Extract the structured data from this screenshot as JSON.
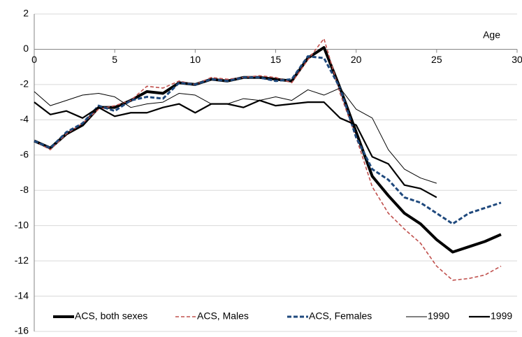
{
  "chart_data": {
    "type": "line",
    "x_label": "Age",
    "x": [
      0,
      1,
      2,
      3,
      4,
      5,
      6,
      7,
      8,
      9,
      10,
      11,
      12,
      13,
      14,
      15,
      16,
      17,
      18,
      19,
      20,
      21,
      22,
      23,
      24,
      25,
      26,
      27,
      28,
      29
    ],
    "xlim": [
      0,
      30
    ],
    "xticks": [
      0,
      5,
      10,
      15,
      20,
      25,
      30
    ],
    "ylim": [
      -16,
      2
    ],
    "yticks": [
      -16,
      -14,
      -12,
      -10,
      -8,
      -6,
      -4,
      -2,
      0,
      2
    ],
    "grid": true,
    "legend": "bottom",
    "series": [
      {
        "name": "ACS, both sexes",
        "color": "#000000",
        "values": [
          -5.2,
          -5.6,
          -4.8,
          -4.3,
          -3.3,
          -3.3,
          -2.9,
          -2.4,
          -2.5,
          -1.9,
          -2.0,
          -1.7,
          -1.8,
          -1.6,
          -1.6,
          -1.7,
          -1.8,
          -0.5,
          0.1,
          -2.2,
          -4.7,
          -7.2,
          -8.3,
          -9.3,
          -9.9,
          -10.8,
          -11.5,
          -11.2,
          -10.9,
          -10.5
        ]
      },
      {
        "name": "ACS, Males",
        "color": "#c0504d",
        "values": [
          -5.2,
          -5.7,
          -4.8,
          -4.2,
          -3.4,
          -3.2,
          -2.9,
          -2.1,
          -2.2,
          -1.8,
          -2.0,
          -1.6,
          -1.7,
          -1.6,
          -1.5,
          -1.6,
          -1.9,
          -0.6,
          0.6,
          -2.5,
          -5.0,
          -7.8,
          -9.3,
          -10.2,
          -11.0,
          -12.3,
          -13.1,
          -13.0,
          -12.8,
          -12.3
        ]
      },
      {
        "name": "ACS, Females",
        "color": "#1f497d",
        "values": [
          -5.2,
          -5.6,
          -4.7,
          -4.2,
          -3.2,
          -3.5,
          -2.9,
          -2.7,
          -2.8,
          -1.9,
          -2.0,
          -1.7,
          -1.8,
          -1.6,
          -1.6,
          -1.8,
          -1.7,
          -0.4,
          -0.5,
          -2.2,
          -5.0,
          -6.8,
          -7.4,
          -8.4,
          -8.7,
          -9.3,
          -9.9,
          -9.3,
          -9.0,
          -8.7
        ]
      },
      {
        "name": "1990",
        "color": "#000000",
        "values": [
          -2.4,
          -3.2,
          -2.9,
          -2.6,
          -2.5,
          -2.7,
          -3.3,
          -3.1,
          -3.0,
          -2.5,
          -2.6,
          -3.1,
          -3.1,
          -2.8,
          -2.9,
          -2.7,
          -2.9,
          -2.3,
          -2.6,
          -2.2,
          -3.4,
          -3.9,
          -5.7,
          -6.8,
          -7.3,
          -7.6,
          null,
          null,
          null,
          null
        ]
      },
      {
        "name": "1999",
        "color": "#000000",
        "values": [
          -3.0,
          -3.7,
          -3.5,
          -3.9,
          -3.3,
          -3.8,
          -3.6,
          -3.6,
          -3.3,
          -3.1,
          -3.6,
          -3.1,
          -3.1,
          -3.3,
          -2.9,
          -3.2,
          -3.1,
          -3.0,
          -3.0,
          -3.9,
          -4.3,
          -6.1,
          -6.5,
          -7.7,
          -7.9,
          -8.4,
          null,
          null,
          null,
          null
        ]
      }
    ]
  }
}
